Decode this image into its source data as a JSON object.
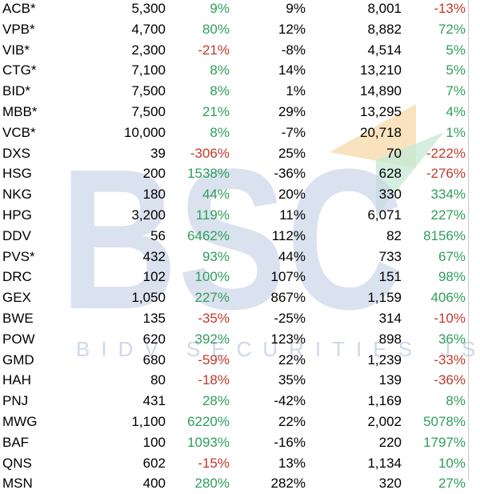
{
  "watermark": {
    "logo_text": "BSC",
    "tagline": "BIDV SECURITIES JSC",
    "colors": {
      "logo": "#c9d4e8",
      "tagline": "#c9d4e8",
      "orange": "#f6d9a8",
      "green": "#c6e8d4"
    }
  },
  "colors": {
    "positive": "#2e9e5b",
    "negative": "#c0392b",
    "text": "#000000"
  },
  "rows": [
    [
      "ACB*",
      "5,300",
      "9%",
      "9%",
      "8,001",
      "-13%"
    ],
    [
      "VPB*",
      "4,700",
      "80%",
      "12%",
      "8,882",
      "72%"
    ],
    [
      "VIB*",
      "2,300",
      "-21%",
      "-8%",
      "4,514",
      "5%"
    ],
    [
      "CTG*",
      "7,100",
      "8%",
      "14%",
      "13,210",
      "5%"
    ],
    [
      "BID*",
      "7,500",
      "8%",
      "1%",
      "14,890",
      "7%"
    ],
    [
      "MBB*",
      "7,500",
      "21%",
      "29%",
      "13,295",
      "4%"
    ],
    [
      "VCB*",
      "10,000",
      "8%",
      "-7%",
      "20,718",
      "1%"
    ],
    [
      "DXS",
      "39",
      "-306%",
      "25%",
      "70",
      "-222%"
    ],
    [
      "HSG",
      "200",
      "1538%",
      "-36%",
      "628",
      "-276%"
    ],
    [
      "NKG",
      "180",
      "44%",
      "20%",
      "330",
      "334%"
    ],
    [
      "HPG",
      "3,200",
      "119%",
      "11%",
      "6,071",
      "227%"
    ],
    [
      "DDV",
      "56",
      "6462%",
      "112%",
      "82",
      "8156%"
    ],
    [
      "PVS*",
      "432",
      "93%",
      "44%",
      "733",
      "67%"
    ],
    [
      "DRC",
      "102",
      "100%",
      "107%",
      "151",
      "98%"
    ],
    [
      "GEX",
      "1,050",
      "227%",
      "867%",
      "1,159",
      "406%"
    ],
    [
      "BWE",
      "135",
      "-35%",
      "-25%",
      "314",
      "-10%"
    ],
    [
      "POW",
      "620",
      "392%",
      "123%",
      "898",
      "36%"
    ],
    [
      "GMD",
      "680",
      "-59%",
      "22%",
      "1,239",
      "-33%"
    ],
    [
      "HAH",
      "80",
      "-18%",
      "35%",
      "139",
      "-36%"
    ],
    [
      "PNJ",
      "431",
      "28%",
      "-42%",
      "1,169",
      "8%"
    ],
    [
      "MWG",
      "1,100",
      "6220%",
      "22%",
      "2,002",
      "5078%"
    ],
    [
      "BAF",
      "100",
      "1093%",
      "-16%",
      "220",
      "1797%"
    ],
    [
      "QNS",
      "602",
      "-15%",
      "13%",
      "1,134",
      "10%"
    ],
    [
      "MSN",
      "400",
      "280%",
      "282%",
      "320",
      "27%"
    ]
  ]
}
